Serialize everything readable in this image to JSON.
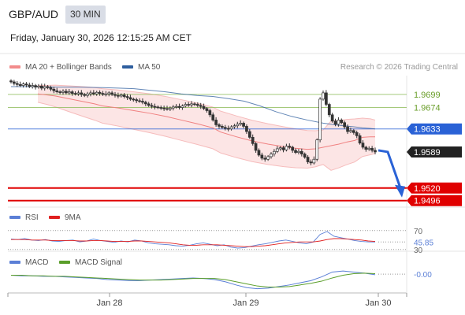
{
  "header": {
    "symbol": "GBP/AUD",
    "timeframe": "30 MIN",
    "datetime": "Friday, January 30, 2026 12:15:25 AM CET",
    "credit": "Research © 2026 Trading Central"
  },
  "legend": {
    "ma20": {
      "label": "MA 20 + Bollinger Bands",
      "color": "#f28b8b"
    },
    "ma50": {
      "label": "MA 50",
      "color": "#2e5e9e"
    },
    "rsi": {
      "label": "RSI",
      "color": "#5b7fd6"
    },
    "ma9": {
      "label": "9MA",
      "color": "#e02020"
    },
    "macd": {
      "label": "MACD",
      "color": "#5b7fd6"
    },
    "macd_signal": {
      "label": "MACD Signal",
      "color": "#5a9e2a"
    }
  },
  "chart_data": [
    {
      "type": "candlestick",
      "title": "GBP/AUD",
      "x_ticks": [
        "Jan 28",
        "Jan 29",
        "Jan 30"
      ],
      "ylim": [
        1.9485,
        1.9735
      ],
      "close": [
        1.9723,
        1.972,
        1.9718,
        1.9716,
        1.9719,
        1.9717,
        1.9714,
        1.9716,
        1.9713,
        1.9715,
        1.9711,
        1.9714,
        1.9712,
        1.9709,
        1.9706,
        1.9704,
        1.9703,
        1.9705,
        1.9702,
        1.9704,
        1.9701,
        1.97,
        1.9702,
        1.9699,
        1.9697,
        1.97,
        1.9702,
        1.97,
        1.9703,
        1.9701,
        1.9699,
        1.97,
        1.9702,
        1.9699,
        1.9697,
        1.9696,
        1.9698,
        1.9695,
        1.9693,
        1.969,
        1.9689,
        1.9687,
        1.9686,
        1.9684,
        1.9681,
        1.9678,
        1.9676,
        1.9675,
        1.9674,
        1.9673,
        1.9672,
        1.9671,
        1.9673,
        1.9675,
        1.9676,
        1.9674,
        1.9677,
        1.968,
        1.9679,
        1.9681,
        1.968,
        1.9678,
        1.9676,
        1.9672,
        1.9668,
        1.966,
        1.965,
        1.9641,
        1.9638,
        1.9636,
        1.9634,
        1.9633,
        1.9637,
        1.9639,
        1.9642,
        1.9644,
        1.9638,
        1.9628,
        1.9617,
        1.9605,
        1.9592,
        1.9583,
        1.9577,
        1.9575,
        1.958,
        1.9585,
        1.959,
        1.9595,
        1.9597,
        1.9593,
        1.96,
        1.9598,
        1.9592,
        1.9588,
        1.959,
        1.9585,
        1.9579,
        1.957,
        1.9568,
        1.9575,
        1.9612,
        1.969,
        1.9702,
        1.968,
        1.966,
        1.9648,
        1.9642,
        1.965,
        1.9645,
        1.9637,
        1.9628,
        1.963,
        1.9626,
        1.962,
        1.9606,
        1.9598,
        1.9594,
        1.9596,
        1.9592,
        1.9589
      ],
      "ma20": [
        1.97,
        1.9698,
        1.9696,
        1.9693,
        1.969,
        1.9687,
        1.9684,
        1.9681,
        1.9677,
        1.9673,
        1.9668,
        1.9663,
        1.9657,
        1.965,
        1.9643,
        1.9635,
        1.9627,
        1.9618,
        1.961,
        1.9604,
        1.9599,
        1.9596,
        1.9594,
        1.9595,
        1.9598,
        1.9601,
        1.9604,
        1.9608,
        1.9611,
        1.9614,
        1.9617,
        1.9618,
        1.9618
      ],
      "ma20_x": [
        48,
        60,
        70,
        80,
        90,
        100,
        110,
        120,
        130,
        150,
        170,
        190,
        210,
        230,
        250,
        270,
        280,
        300,
        320,
        340,
        360,
        375,
        390,
        400,
        410,
        420,
        430,
        440,
        450,
        455,
        460,
        470,
        476
      ],
      "ma50": [
        1.9714,
        1.9714,
        1.9713,
        1.9713,
        1.9712,
        1.9711,
        1.971,
        1.9707,
        1.9704,
        1.97,
        1.9697,
        1.9695,
        1.9691,
        1.9686,
        1.9677,
        1.9666,
        1.9657,
        1.965,
        1.9644,
        1.964,
        1.9637,
        1.9635,
        1.9634,
        1.9633
      ],
      "ma50_x": [
        14,
        40,
        70,
        100,
        130,
        150,
        170,
        190,
        210,
        230,
        250,
        270,
        290,
        310,
        330,
        350,
        370,
        390,
        410,
        430,
        450,
        460,
        470,
        476
      ],
      "levels": [
        {
          "label": "1.9699",
          "value": 1.9699,
          "color": "#8fbc5a"
        },
        {
          "label": "1.9674",
          "value": 1.9674,
          "color": "#8fbc5a"
        },
        {
          "label": "1.9633",
          "value": 1.9633,
          "color": "#2a62d6"
        },
        {
          "label": "1.9589",
          "value": 1.9589,
          "color": "#222222"
        },
        {
          "label": "1.9520",
          "value": 1.952,
          "color": "#e00000"
        },
        {
          "label": "1.9496",
          "value": 1.9496,
          "color": "#e00000"
        }
      ],
      "forecast_arrow": {
        "from": 1.9589,
        "to": 1.9508,
        "color": "#2a62d6"
      }
    },
    {
      "type": "line",
      "title": "RSI",
      "ylim": [
        28,
        78
      ],
      "y_ticks": [
        "70",
        "30"
      ],
      "current_label": "45.85",
      "series": [
        {
          "name": "RSI",
          "values": [
            52,
            51,
            53,
            50,
            49,
            51,
            48,
            47,
            49,
            50,
            46,
            48,
            52,
            49,
            47,
            45,
            48,
            46,
            50,
            48,
            44,
            42,
            41,
            40,
            38,
            37,
            39,
            42,
            44,
            41,
            38,
            40,
            35,
            33,
            34,
            37,
            40,
            42,
            45,
            48,
            50,
            47,
            44,
            42,
            46,
            62,
            68,
            58,
            55,
            52,
            49,
            47,
            46,
            45.85
          ]
        },
        {
          "name": "9MA",
          "values": [
            51,
            51,
            51,
            50,
            50,
            50,
            49,
            49,
            49,
            49,
            48,
            48,
            49,
            49,
            48,
            47,
            47,
            47,
            48,
            48,
            47,
            46,
            45,
            44,
            42,
            40,
            39,
            39,
            40,
            40,
            40,
            39,
            38,
            37,
            36,
            36,
            37,
            38,
            40,
            42,
            44,
            45,
            46,
            46,
            46,
            48,
            51,
            53,
            53,
            52,
            51,
            50,
            48,
            47
          ]
        }
      ]
    },
    {
      "type": "line",
      "title": "MACD",
      "current_label": "-0.00",
      "ylim": [
        -0.0032,
        0.0012
      ],
      "series": [
        {
          "name": "MACD",
          "values": [
            -0.0002,
            -0.0003,
            -0.0003,
            -0.0004,
            -0.0004,
            -0.0005,
            -0.0006,
            -0.0007,
            -0.0008,
            -0.001,
            -0.0011,
            -0.0012,
            -0.0012,
            -0.0011,
            -0.001,
            -0.0009,
            -0.0008,
            -0.0007,
            -0.0008,
            -0.001,
            -0.0014,
            -0.002,
            -0.0025,
            -0.0027,
            -0.0026,
            -0.0023,
            -0.002,
            -0.0016,
            -0.0012,
            -0.0005,
            0.0004,
            0.0006,
            0.0004,
            0.0002,
            -0.0001
          ]
        },
        {
          "name": "MACD Signal",
          "values": [
            -0.0002,
            -0.0002,
            -0.0003,
            -0.0003,
            -0.0004,
            -0.0004,
            -0.0005,
            -0.0006,
            -0.0007,
            -0.0008,
            -0.0009,
            -0.001,
            -0.0011,
            -0.0011,
            -0.0011,
            -0.001,
            -0.0009,
            -0.0008,
            -0.0008,
            -0.0008,
            -0.001,
            -0.0014,
            -0.0018,
            -0.0022,
            -0.0024,
            -0.0024,
            -0.0023,
            -0.002,
            -0.0017,
            -0.0013,
            -0.0007,
            -0.0002,
            0.0001,
            0.0002,
            0.0001
          ]
        }
      ]
    }
  ]
}
